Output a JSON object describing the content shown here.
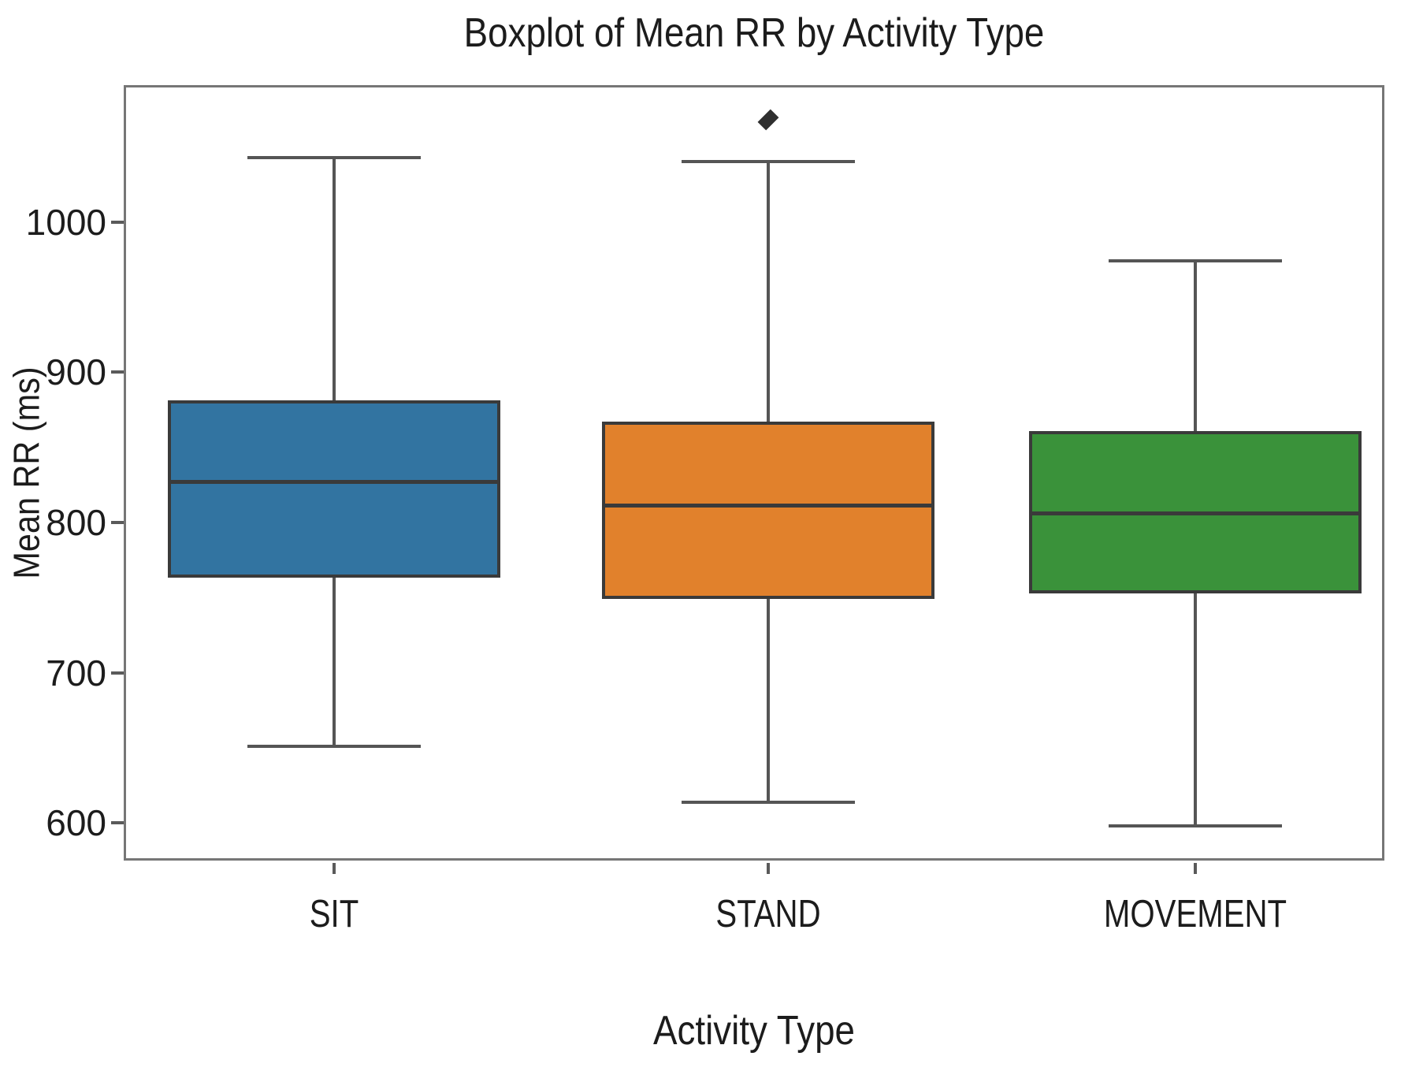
{
  "chart_data": {
    "type": "boxplot",
    "title": "Boxplot of Mean RR by Activity Type",
    "xlabel": "Activity Type",
    "ylabel": "Mean RR (ms)",
    "categories": [
      "SIT",
      "STAND",
      "MOVEMENT"
    ],
    "yticks": [
      600,
      700,
      800,
      900,
      1000
    ],
    "ylim": [
      575,
      1091
    ],
    "grid": false,
    "legend": "none",
    "series": [
      {
        "label": "SIT",
        "color": "#3274a1",
        "whisker_low": 651,
        "q1": 763,
        "median": 827,
        "q3": 881,
        "whisker_high": 1043,
        "outliers": []
      },
      {
        "label": "STAND",
        "color": "#e1812c",
        "whisker_low": 614,
        "q1": 749,
        "median": 811,
        "q3": 867,
        "whisker_high": 1040,
        "outliers": [
          1068
        ]
      },
      {
        "label": "MOVEMENT",
        "color": "#3a923a",
        "whisker_low": 598,
        "q1": 753,
        "median": 806,
        "q3": 861,
        "whisker_high": 974,
        "outliers": []
      }
    ],
    "box_edge_color": "#3a3a3a",
    "whisker_color": "#555555",
    "spine_color": "#767676",
    "outlier_color": "#2f2f2f"
  }
}
